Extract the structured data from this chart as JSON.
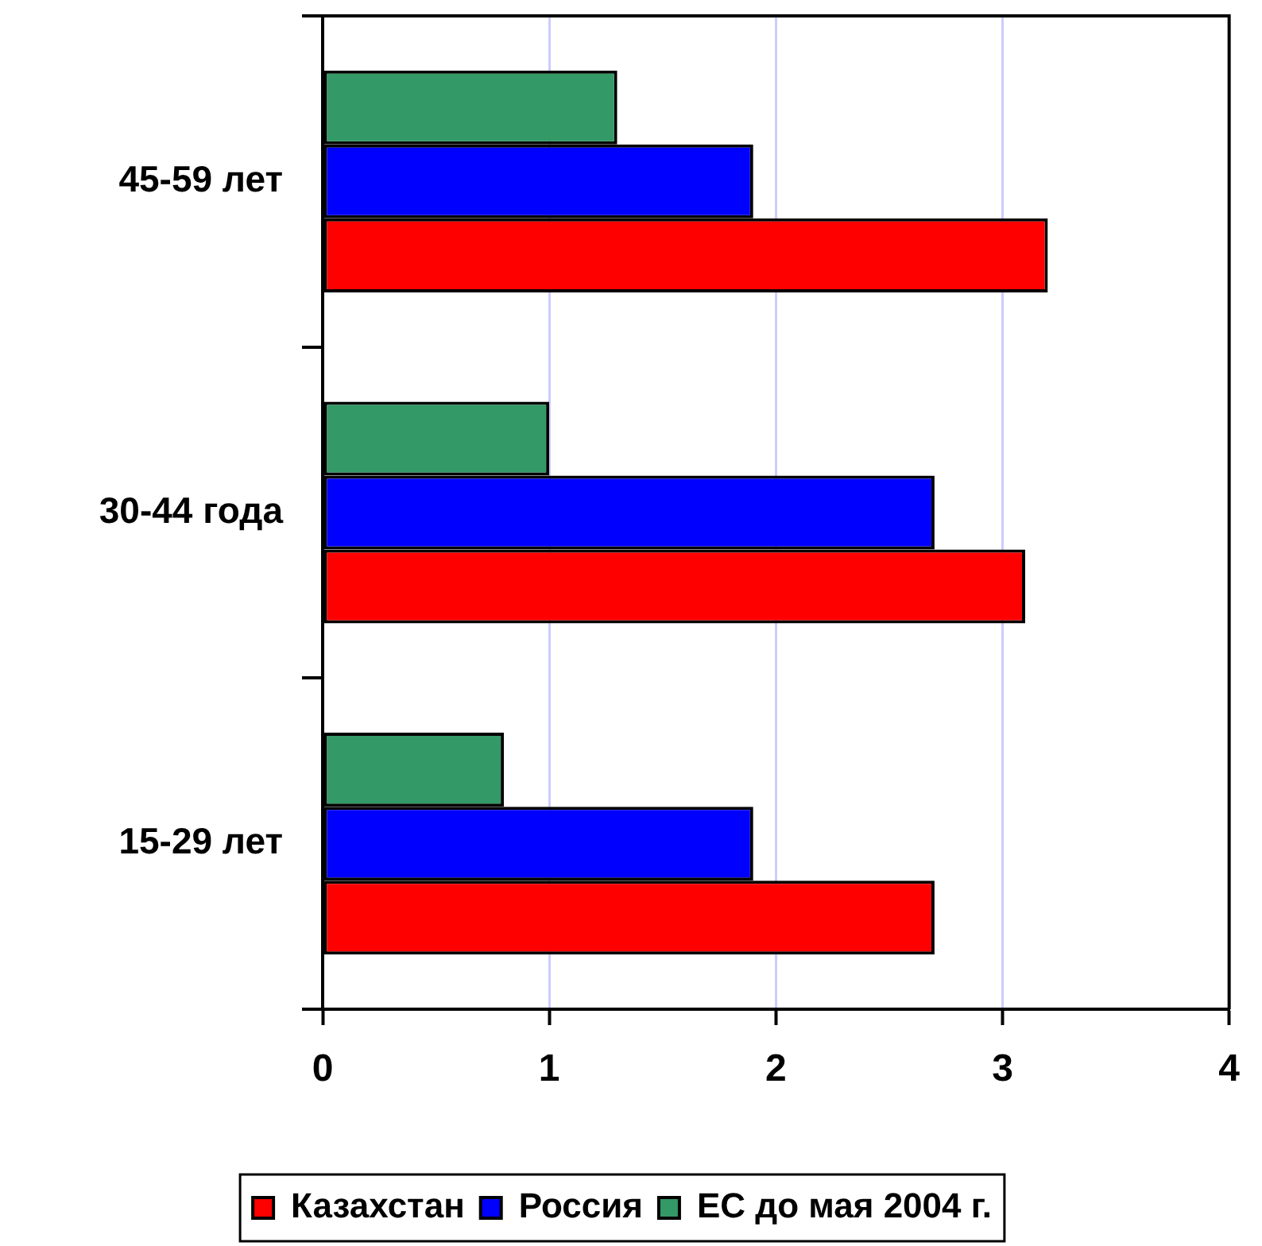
{
  "chart_data": {
    "type": "bar",
    "orientation": "horizontal",
    "categories": [
      "45-59 лет",
      "30-44 года",
      "15-29 лет"
    ],
    "series": [
      {
        "name": "Казахстан",
        "color": "#ff0000",
        "values": [
          3.2,
          3.1,
          2.7
        ]
      },
      {
        "name": "Россия",
        "color": "#0000ff",
        "values": [
          1.9,
          2.7,
          1.9
        ]
      },
      {
        "name": "ЕС до мая 2004 г.",
        "color": "#339966",
        "values": [
          1.3,
          1.0,
          0.8
        ]
      }
    ],
    "xlim": [
      0,
      4
    ],
    "xticks": [
      0,
      1,
      2,
      3,
      4
    ],
    "grid": "x",
    "legend": "bottom"
  }
}
